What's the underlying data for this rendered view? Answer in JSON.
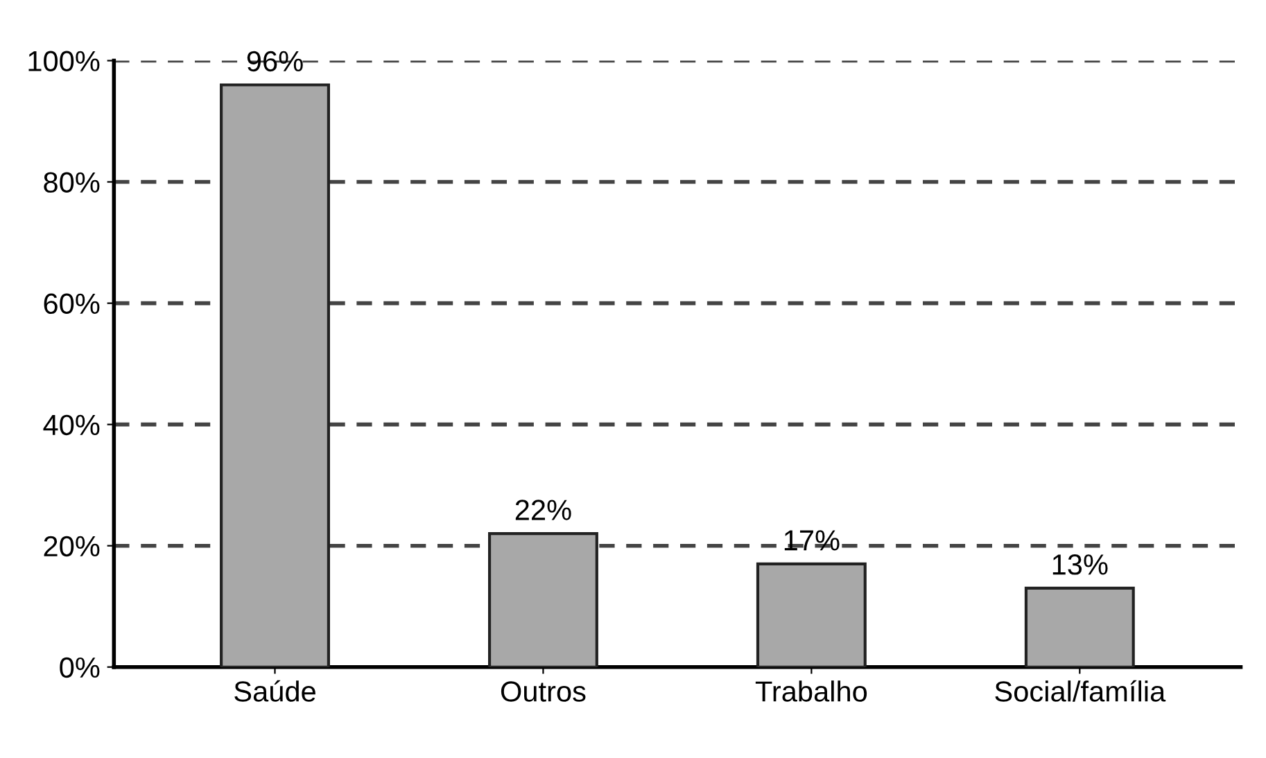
{
  "chart_data": {
    "type": "bar",
    "categories": [
      "Saúde",
      "Outros",
      "Trabalho",
      "Social/família"
    ],
    "values": [
      96,
      22,
      17,
      13
    ],
    "color": "#a8a8a8",
    "value_labels": [
      "96%",
      "22%",
      "17%",
      "13%"
    ],
    "ylim": [
      0,
      100
    ],
    "yticks": [
      {
        "value": 0,
        "label": "0%"
      },
      {
        "value": 20,
        "label": "20%"
      },
      {
        "value": 40,
        "label": "40%"
      },
      {
        "value": 60,
        "label": "60%"
      },
      {
        "value": 80,
        "label": "80%"
      },
      {
        "value": 100,
        "label": "100%"
      }
    ],
    "grid": "y"
  }
}
